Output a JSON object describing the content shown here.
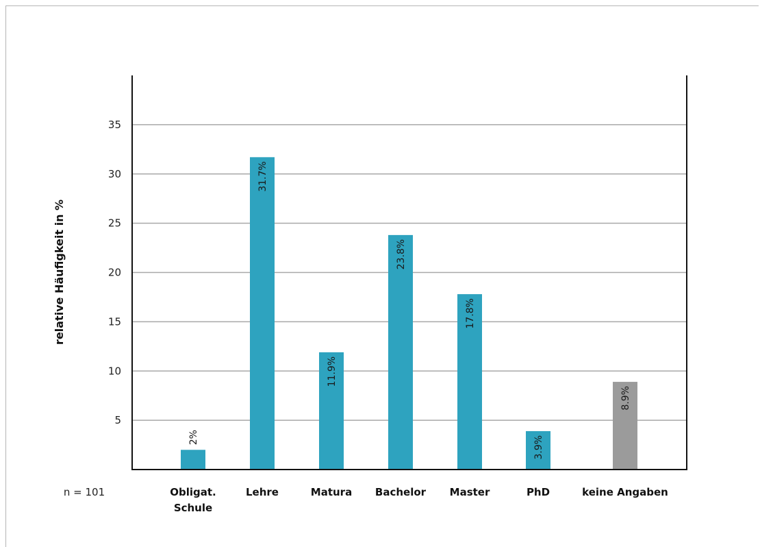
{
  "chart_data": {
    "type": "bar",
    "title": "",
    "xlabel": "",
    "ylabel": "relative  Häufigkeit in %",
    "ylim": [
      0,
      40
    ],
    "yticks": [
      5,
      10,
      15,
      20,
      25,
      30,
      35
    ],
    "grid": true,
    "note": "n = 101",
    "categories": [
      [
        "Obligat.",
        "Schule"
      ],
      [
        "Lehre"
      ],
      [
        "Matura"
      ],
      [
        "Bachelor"
      ],
      [
        "Master"
      ],
      [
        "PhD"
      ],
      [
        "keine Angaben"
      ]
    ],
    "values": [
      2,
      31.7,
      11.9,
      23.8,
      17.8,
      3.9,
      8.9
    ],
    "value_labels": [
      "2%",
      "31.7%",
      "11.9%",
      "23.8%",
      "17.8%",
      "3.9%",
      "8.9%"
    ],
    "colors": [
      "#2ea3bf",
      "#2ea3bf",
      "#2ea3bf",
      "#2ea3bf",
      "#2ea3bf",
      "#2ea3bf",
      "#9b9b9b"
    ],
    "grid_color": "#a8a8a8",
    "axis_color": "#111111"
  }
}
